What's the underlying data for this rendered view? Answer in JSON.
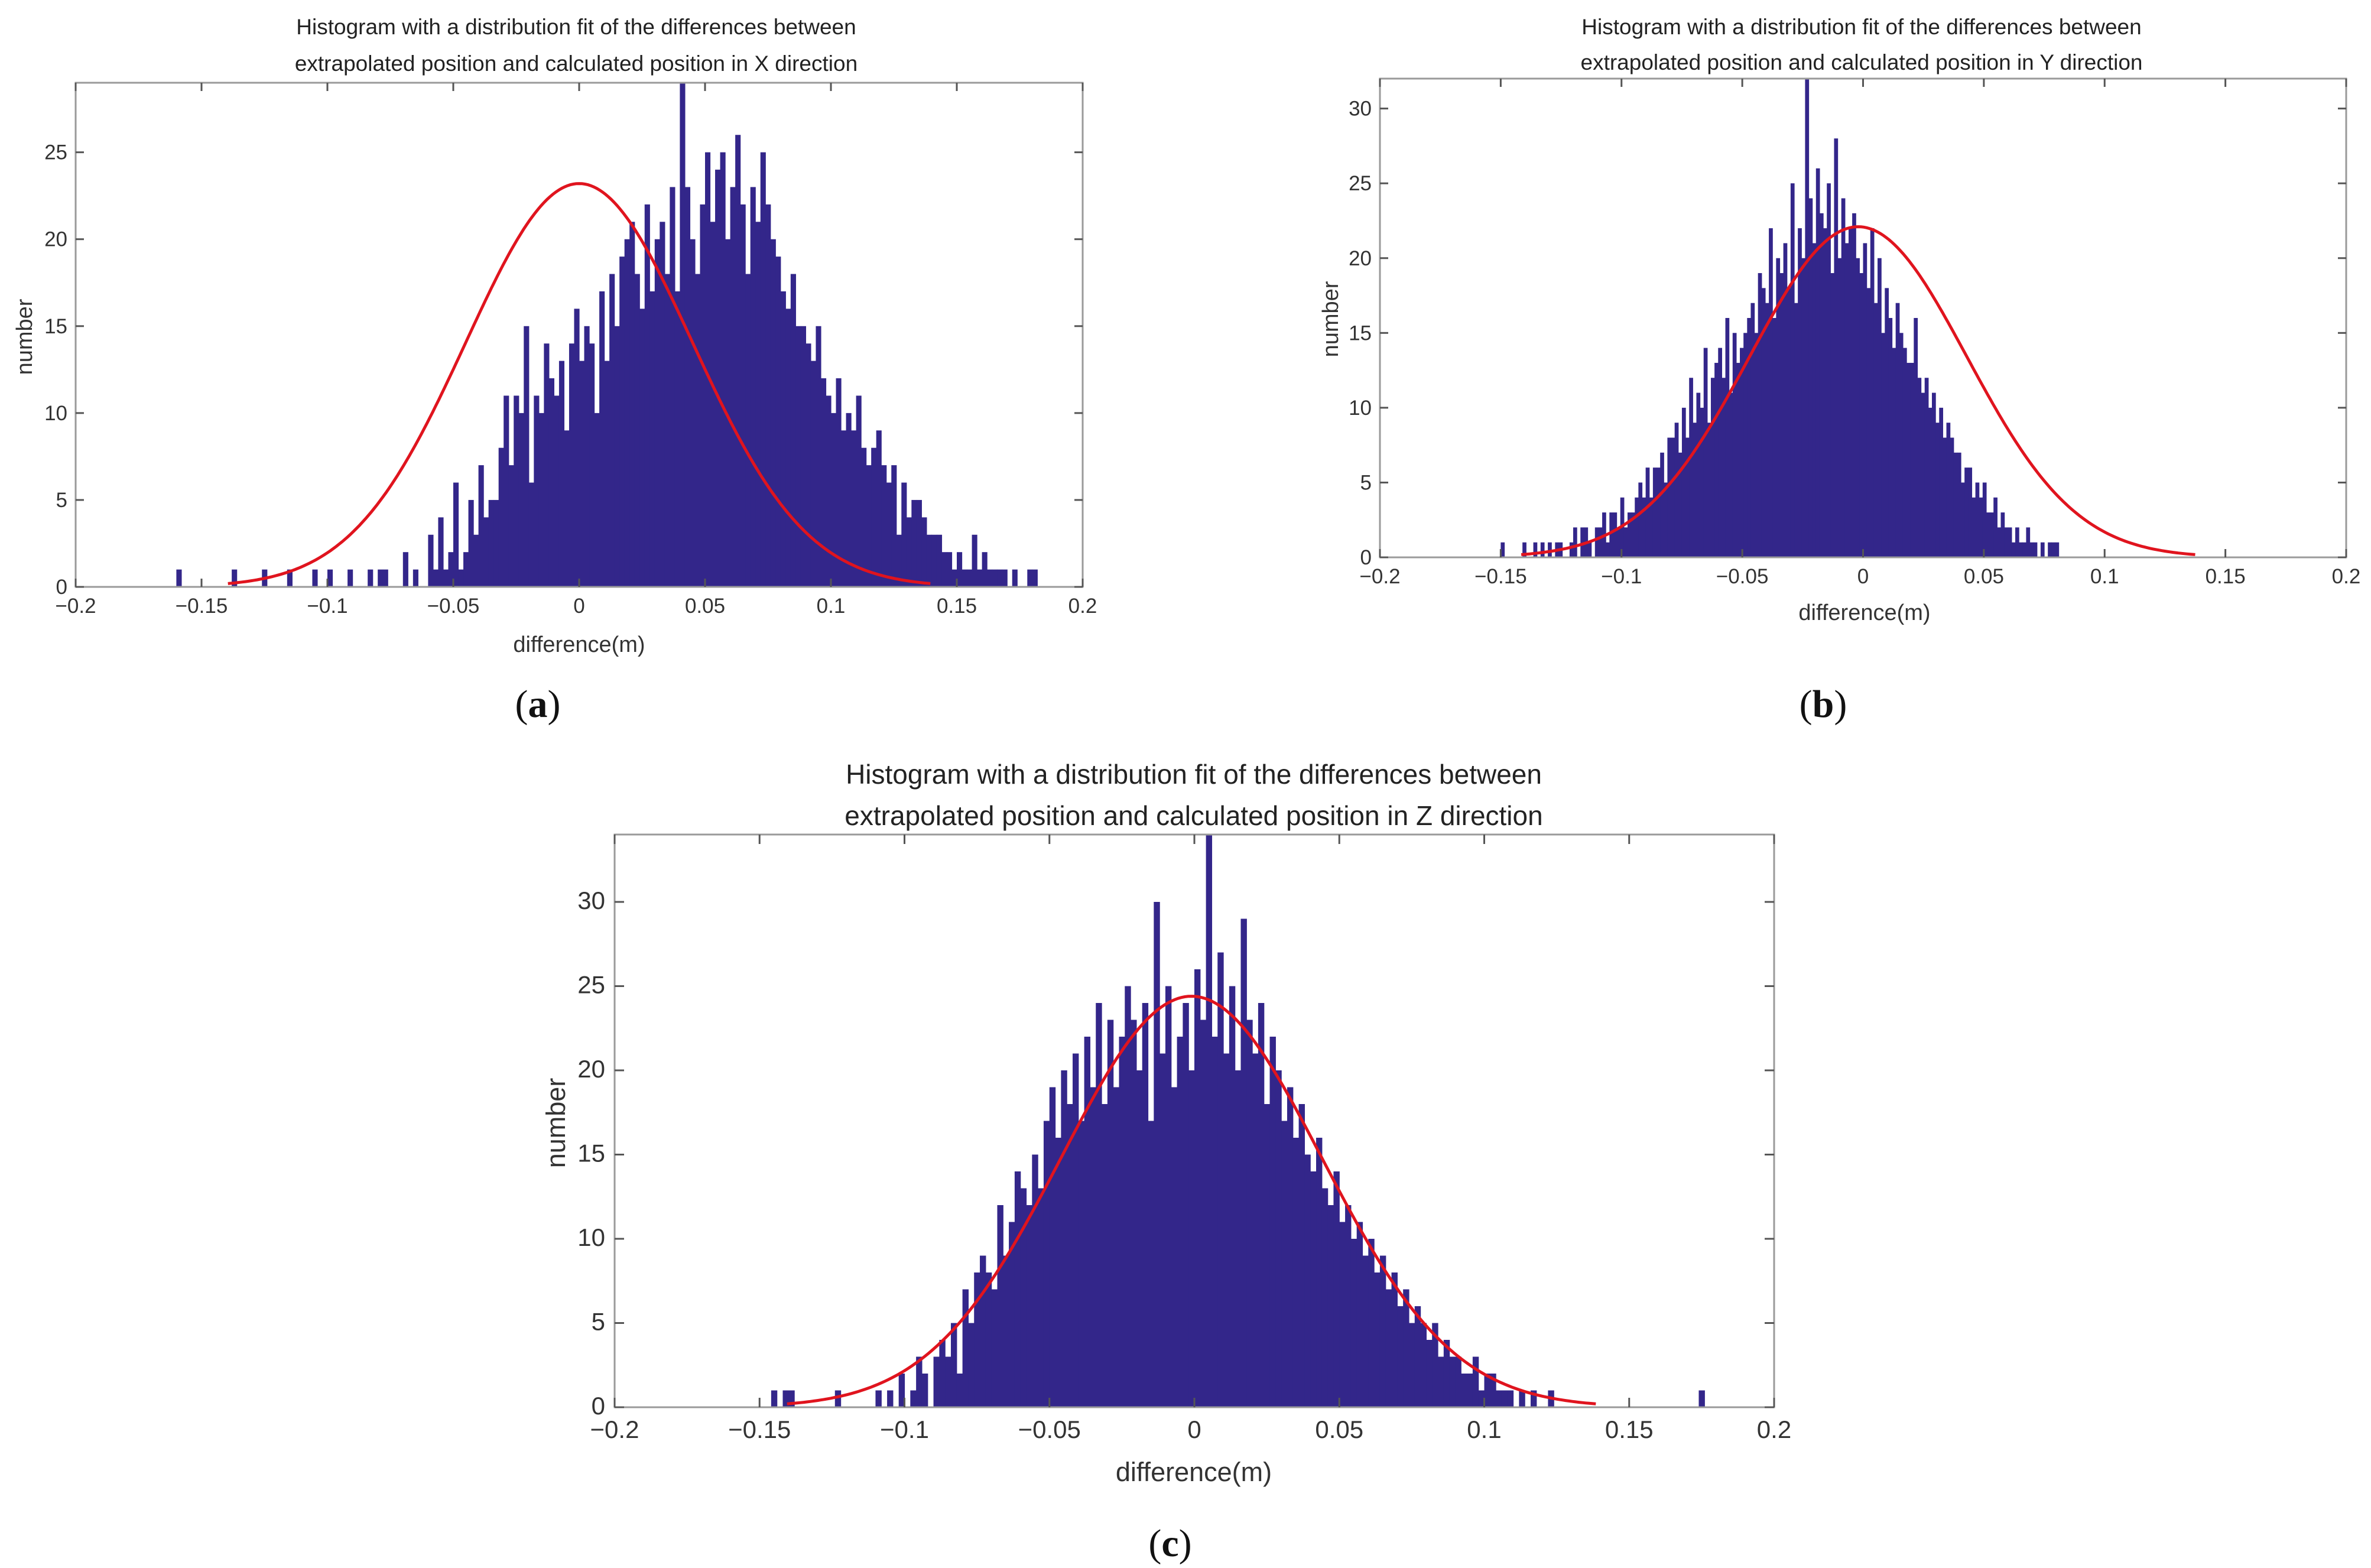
{
  "chart_data": [
    {
      "panel": "a",
      "type": "bar",
      "caption_letter": "a",
      "title": "Histogram with a distribution fit of the differences between extrapolated position and calculated position in X direction",
      "title_lines": [
        "Histogram with a distribution fit of the differences between",
        "extrapolated position and calculated position in X direction"
      ],
      "xlabel": "difference(m)",
      "ylabel": "number",
      "xlim": [
        -0.2,
        0.2
      ],
      "ylim": [
        0,
        29
      ],
      "xticks": [
        -0.2,
        -0.15,
        -0.1,
        -0.05,
        0,
        0.05,
        0.1,
        0.15,
        0.2
      ],
      "xtick_labels": [
        "−0.2",
        "−0.15",
        "−0.1",
        "−0.05",
        "0",
        "0.05",
        "0.1",
        "0.15",
        "0.2"
      ],
      "yticks": [
        0,
        5,
        10,
        15,
        20,
        25
      ],
      "ytick_labels": [
        "0",
        "5",
        "10",
        "15",
        "20",
        "25"
      ],
      "bin_start": -0.16,
      "bin_width": 0.002,
      "counts": [
        1,
        0,
        0,
        0,
        0,
        0,
        0,
        0,
        0,
        0,
        0,
        1,
        0,
        0,
        0,
        0,
        0,
        1,
        0,
        0,
        0,
        0,
        1,
        0,
        0,
        0,
        0,
        1,
        0,
        0,
        1,
        0,
        0,
        0,
        1,
        0,
        0,
        0,
        1,
        0,
        1,
        1,
        0,
        0,
        0,
        2,
        0,
        1,
        0,
        0,
        3,
        1,
        4,
        1,
        2,
        6,
        1,
        2,
        5,
        3,
        7,
        4,
        5,
        5,
        8,
        11,
        7,
        11,
        10,
        15,
        6,
        11,
        10,
        14,
        12,
        11,
        13,
        9,
        14,
        16,
        13,
        15,
        14,
        10,
        17,
        13,
        18,
        15,
        19,
        20,
        21,
        18,
        16,
        22,
        17,
        20,
        21,
        18,
        23,
        17,
        29,
        23,
        20,
        18,
        22,
        25,
        21,
        24,
        25,
        20,
        23,
        26,
        22,
        18,
        23,
        21,
        25,
        22,
        20,
        19,
        17,
        16,
        18,
        15,
        15,
        14,
        13,
        15,
        12,
        11,
        10,
        12,
        9,
        10,
        9,
        11,
        8,
        7,
        8,
        9,
        7,
        6,
        7,
        3,
        6,
        4,
        5,
        5,
        4,
        3,
        3,
        3,
        2,
        2,
        1,
        2,
        1,
        1,
        3,
        1,
        2,
        1,
        1,
        1,
        1,
        0,
        1,
        0,
        0,
        1,
        1
      ],
      "fit": {
        "distribution": "normal",
        "mu": 0.0,
        "sigma": 0.045,
        "peak": 23.2
      }
    },
    {
      "panel": "b",
      "type": "bar",
      "caption_letter": "b",
      "title": "Histogram with a distribution fit of the differences between extrapolated position and calculated position in Y direction",
      "title_lines": [
        "Histogram with a distribution fit of the differences between",
        "extrapolated position and calculated position in Y direction"
      ],
      "xlabel": "difference(m)",
      "ylabel": "number",
      "xlim": [
        -0.2,
        0.2
      ],
      "ylim": [
        0,
        32
      ],
      "xticks": [
        -0.2,
        -0.15,
        -0.1,
        -0.05,
        0,
        0.05,
        0.1,
        0.15,
        0.2
      ],
      "xtick_labels": [
        "−0.2",
        "−0.15",
        "−0.1",
        "−0.05",
        "0",
        "0.05",
        "0.1",
        "0.15",
        "0.2"
      ],
      "yticks": [
        0,
        5,
        10,
        15,
        20,
        25,
        30
      ],
      "ytick_labels": [
        "0",
        "5",
        "10",
        "15",
        "20",
        "25",
        "30"
      ],
      "bin_start": -0.15,
      "bin_width": 0.0015,
      "counts": [
        1,
        0,
        0,
        0,
        0,
        0,
        1,
        0,
        0,
        1,
        0,
        1,
        0,
        1,
        0,
        1,
        1,
        0,
        0,
        1,
        2,
        0,
        2,
        2,
        1,
        0,
        2,
        2,
        3,
        1,
        3,
        3,
        2,
        4,
        2,
        3,
        3,
        4,
        5,
        4,
        6,
        4,
        6,
        6,
        7,
        5,
        8,
        8,
        9,
        7,
        10,
        8,
        12,
        9,
        11,
        10,
        14,
        9,
        12,
        13,
        14,
        12,
        16,
        11,
        15,
        13,
        14,
        15,
        16,
        17,
        15,
        19,
        18,
        17,
        22,
        16,
        20,
        19,
        21,
        18,
        25,
        17,
        22,
        20,
        32,
        24,
        21,
        26,
        23,
        22,
        25,
        19,
        28,
        20,
        24,
        21,
        22,
        23,
        20,
        19,
        21,
        18,
        22,
        17,
        20,
        15,
        18,
        16,
        14,
        17,
        15,
        14,
        13,
        13,
        16,
        12,
        11,
        12,
        10,
        11,
        9,
        10,
        8,
        9,
        8,
        7,
        7,
        5,
        6,
        6,
        4,
        5,
        4,
        5,
        3,
        3,
        4,
        2,
        3,
        2,
        2,
        1,
        2,
        1,
        1,
        2,
        1,
        1,
        0,
        1,
        0,
        1,
        1,
        1
      ],
      "fit": {
        "distribution": "normal",
        "mu": -0.002,
        "sigma": 0.045,
        "peak": 22.1
      }
    },
    {
      "panel": "c",
      "type": "bar",
      "caption_letter": "c",
      "title": "Histogram with a distribution fit of the differences between extrapolated position and calculated position in Z direction",
      "title_lines": [
        "Histogram with a distribution fit of the differences between",
        "extrapolated position and calculated position in Z direction"
      ],
      "xlabel": "difference(m)",
      "ylabel": "number",
      "xlim": [
        -0.2,
        0.2
      ],
      "ylim": [
        0,
        34
      ],
      "xticks": [
        -0.2,
        -0.15,
        -0.1,
        -0.05,
        0,
        0.05,
        0.1,
        0.15,
        0.2
      ],
      "xtick_labels": [
        "−0.2",
        "−0.15",
        "−0.1",
        "−0.05",
        "0",
        "0.05",
        "0.1",
        "0.15",
        "0.2"
      ],
      "yticks": [
        0,
        5,
        10,
        15,
        20,
        25,
        30
      ],
      "ytick_labels": [
        "0",
        "5",
        "10",
        "15",
        "20",
        "25",
        "30"
      ],
      "bin_start": -0.146,
      "bin_width": 0.002,
      "counts": [
        1,
        0,
        1,
        1,
        0,
        0,
        0,
        0,
        0,
        0,
        0,
        1,
        0,
        0,
        0,
        0,
        0,
        0,
        1,
        0,
        1,
        0,
        2,
        0,
        1,
        3,
        2,
        0,
        3,
        4,
        3,
        5,
        2,
        7,
        5,
        8,
        9,
        8,
        7,
        12,
        9,
        11,
        14,
        13,
        12,
        15,
        13,
        17,
        19,
        16,
        20,
        18,
        21,
        17,
        22,
        19,
        24,
        18,
        23,
        19,
        22,
        25,
        23,
        20,
        24,
        17,
        30,
        21,
        25,
        19,
        22,
        24,
        20,
        26,
        23,
        34,
        22,
        27,
        21,
        25,
        20,
        29,
        23,
        21,
        24,
        18,
        22,
        20,
        17,
        19,
        16,
        18,
        15,
        14,
        16,
        13,
        12,
        14,
        11,
        12,
        10,
        11,
        9,
        10,
        8,
        9,
        7,
        8,
        6,
        7,
        5,
        6,
        5,
        4,
        5,
        3,
        4,
        3,
        3,
        2,
        2,
        3,
        1,
        2,
        2,
        1,
        1,
        1,
        0,
        1,
        0,
        1,
        0,
        0,
        1,
        0,
        0,
        0,
        0,
        0,
        0,
        0,
        0,
        0,
        0,
        0,
        0,
        0,
        0,
        0,
        0,
        0,
        0,
        0,
        0,
        0,
        0,
        0,
        0,
        0,
        1
      ],
      "fit": {
        "distribution": "normal",
        "mu": -0.001,
        "sigma": 0.045,
        "peak": 24.4
      }
    }
  ]
}
